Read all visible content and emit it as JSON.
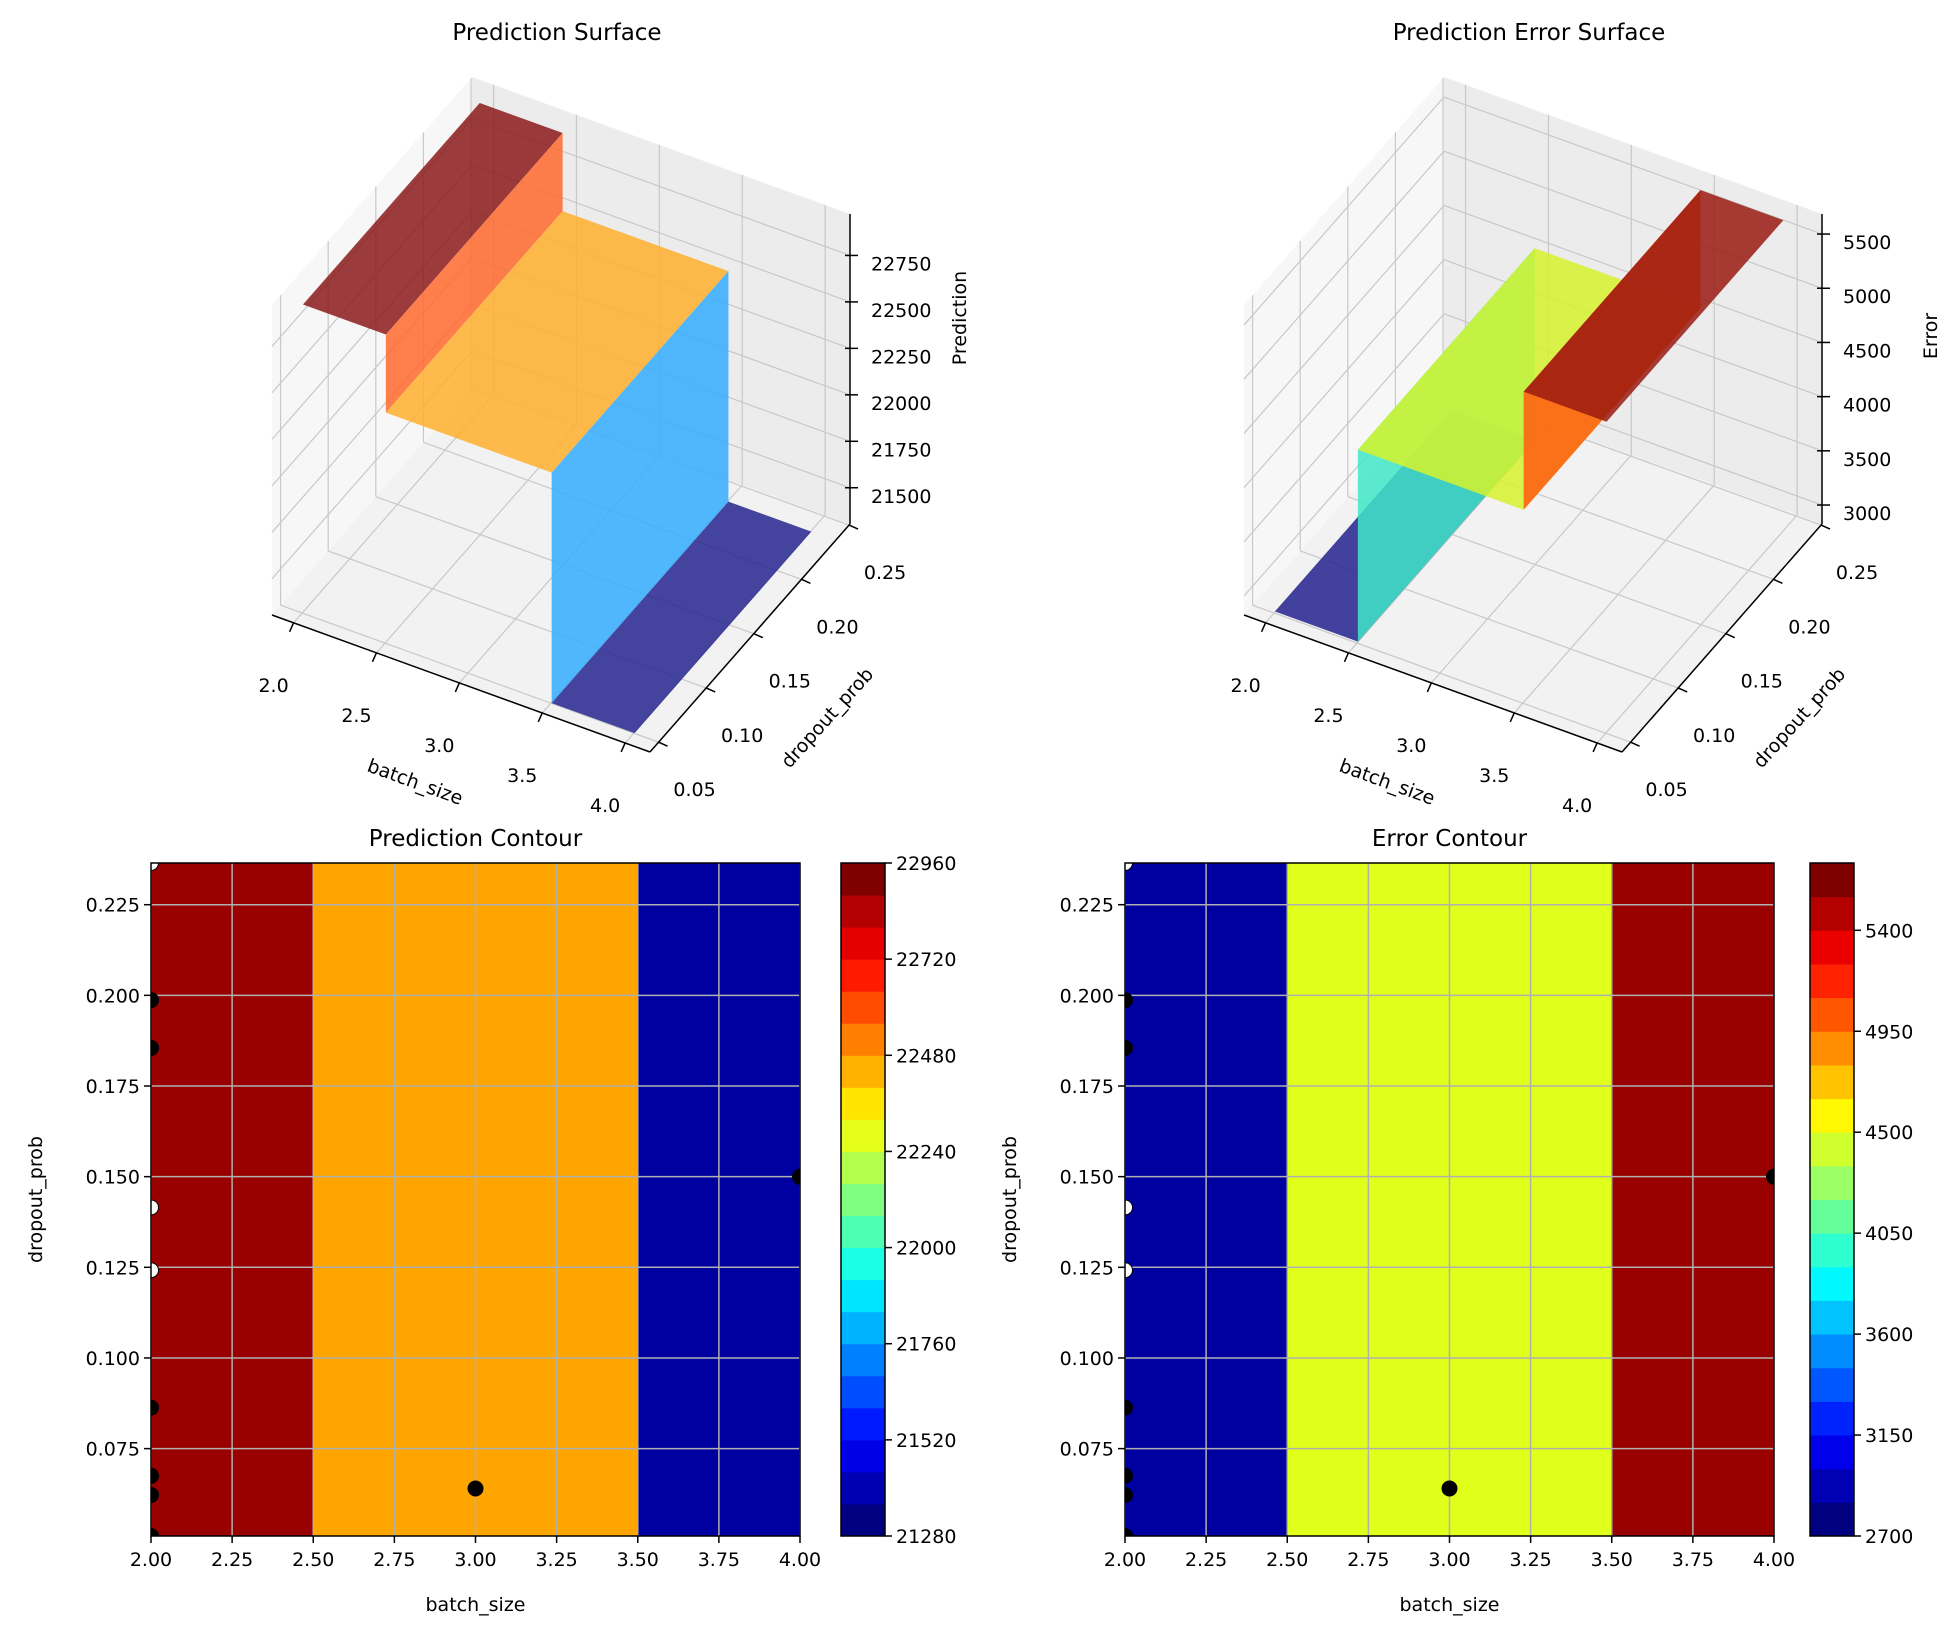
{
  "chart_data": [
    {
      "type": "surface",
      "title": "Prediction Surface",
      "xlabel": "batch_size",
      "ylabel": "dropout_prob",
      "zlabel": "Prediction",
      "xticks": [
        "2.0",
        "2.5",
        "3.0",
        "3.5",
        "4.0"
      ],
      "yticks": [
        "0.05",
        "0.10",
        "0.15",
        "0.20",
        "0.25"
      ],
      "zticks": [
        "21500",
        "21750",
        "22000",
        "22250",
        "22500",
        "22750"
      ],
      "zlim": [
        21305,
        22973
      ],
      "dropout_range": [
        0.0509,
        0.2365
      ],
      "colormap": "jet",
      "regions": [
        {
          "batch_size": [
            2.0,
            2.5
          ],
          "value": 22960,
          "color": "#8b1a1a"
        },
        {
          "batch_size": [
            2.5,
            3.5
          ],
          "value": 22540,
          "color": "#ffb02e"
        },
        {
          "batch_size": [
            3.5,
            4.0
          ],
          "value": 21300,
          "color": "#26268f"
        }
      ],
      "wall_colors": [
        "#ff6a2e",
        "#35adff"
      ]
    },
    {
      "type": "surface",
      "title": "Prediction Error Surface",
      "xlabel": "batch_size",
      "ylabel": "dropout_prob",
      "zlabel": "Error",
      "xticks": [
        "2.0",
        "2.5",
        "3.0",
        "3.5",
        "4.0"
      ],
      "yticks": [
        "0.05",
        "0.10",
        "0.15",
        "0.20",
        "0.25"
      ],
      "zticks": [
        "3000",
        "3500",
        "4000",
        "4500",
        "5000",
        "5500"
      ],
      "zlim": [
        2825,
        5685
      ],
      "dropout_range": [
        0.0509,
        0.2365
      ],
      "colormap": "jet",
      "regions": [
        {
          "batch_size": [
            2.0,
            2.5
          ],
          "value": 2830,
          "color": "#23238f"
        },
        {
          "batch_size": [
            2.5,
            3.5
          ],
          "value": 4600,
          "color": "#d6f22c"
        },
        {
          "batch_size": [
            3.5,
            4.0
          ],
          "value": 5690,
          "color": "#9a1a10"
        }
      ],
      "wall_colors": [
        "#40e6c8",
        "#ff5a10"
      ]
    },
    {
      "type": "contour",
      "title": "Prediction Contour",
      "xlabel": "batch_size",
      "ylabel": "dropout_prob",
      "xlim": [
        2.0,
        4.0
      ],
      "ylim": [
        0.0509,
        0.2365
      ],
      "grid": true,
      "xticks": [
        "2.00",
        "2.25",
        "2.50",
        "2.75",
        "3.00",
        "3.25",
        "3.50",
        "3.75",
        "4.00"
      ],
      "yticks": [
        "0.075",
        "0.100",
        "0.125",
        "0.150",
        "0.175",
        "0.200",
        "0.225"
      ],
      "regions": [
        {
          "batch_size": [
            2.0,
            2.5
          ],
          "value": 22960,
          "color": "#990000"
        },
        {
          "batch_size": [
            2.5,
            3.5
          ],
          "value": 22540,
          "color": "#ffa500"
        },
        {
          "batch_size": [
            3.5,
            4.0
          ],
          "value": 21300,
          "color": "#0000a0"
        }
      ],
      "colorbar": {
        "colormap": "jet",
        "min": 21280,
        "max": 22960,
        "level_step": 80,
        "ticks": [
          "21280",
          "21520",
          "21760",
          "22000",
          "22240",
          "22480",
          "22720",
          "22960"
        ]
      },
      "points": [
        {
          "batch_size": 2.0,
          "dropout_prob": 0.2365,
          "fill": "#ffffff"
        },
        {
          "batch_size": 2.0,
          "dropout_prob": 0.1987,
          "fill": "#000000"
        },
        {
          "batch_size": 2.0,
          "dropout_prob": 0.1855,
          "fill": "#000000"
        },
        {
          "batch_size": 2.0,
          "dropout_prob": 0.1415,
          "fill": "#ffffff"
        },
        {
          "batch_size": 2.0,
          "dropout_prob": 0.1242,
          "fill": "#ffffff"
        },
        {
          "batch_size": 2.0,
          "dropout_prob": 0.0863,
          "fill": "#000000"
        },
        {
          "batch_size": 2.0,
          "dropout_prob": 0.0675,
          "fill": "#000000"
        },
        {
          "batch_size": 2.0,
          "dropout_prob": 0.0622,
          "fill": "#000000"
        },
        {
          "batch_size": 2.0,
          "dropout_prob": 0.0509,
          "fill": "#000000"
        },
        {
          "batch_size": 3.0,
          "dropout_prob": 0.064,
          "fill": "#000000"
        },
        {
          "batch_size": 4.0,
          "dropout_prob": 0.15,
          "fill": "#000000"
        }
      ]
    },
    {
      "type": "contour",
      "title": "Error Contour",
      "xlabel": "batch_size",
      "ylabel": "dropout_prob",
      "xlim": [
        2.0,
        4.0
      ],
      "ylim": [
        0.0509,
        0.2365
      ],
      "grid": true,
      "xticks": [
        "2.00",
        "2.25",
        "2.50",
        "2.75",
        "3.00",
        "3.25",
        "3.50",
        "3.75",
        "4.00"
      ],
      "yticks": [
        "0.075",
        "0.100",
        "0.125",
        "0.150",
        "0.175",
        "0.200",
        "0.225"
      ],
      "regions": [
        {
          "batch_size": [
            2.0,
            2.5
          ],
          "value": 2830,
          "color": "#0000a0"
        },
        {
          "batch_size": [
            2.5,
            3.5
          ],
          "value": 4600,
          "color": "#e0ff1b"
        },
        {
          "batch_size": [
            3.5,
            4.0
          ],
          "value": 5690,
          "color": "#990000"
        }
      ],
      "colorbar": {
        "colormap": "jet",
        "min": 2700,
        "max": 5700,
        "level_step": 150,
        "ticks": [
          "2700",
          "3150",
          "3600",
          "4050",
          "4500",
          "4950",
          "5400"
        ]
      },
      "points": [
        {
          "batch_size": 2.0,
          "dropout_prob": 0.2365,
          "fill": "#ffffff"
        },
        {
          "batch_size": 2.0,
          "dropout_prob": 0.1987,
          "fill": "#000000"
        },
        {
          "batch_size": 2.0,
          "dropout_prob": 0.1855,
          "fill": "#000000"
        },
        {
          "batch_size": 2.0,
          "dropout_prob": 0.1415,
          "fill": "#ffffff"
        },
        {
          "batch_size": 2.0,
          "dropout_prob": 0.1242,
          "fill": "#ffffff"
        },
        {
          "batch_size": 2.0,
          "dropout_prob": 0.0863,
          "fill": "#000000"
        },
        {
          "batch_size": 2.0,
          "dropout_prob": 0.0675,
          "fill": "#000000"
        },
        {
          "batch_size": 2.0,
          "dropout_prob": 0.0622,
          "fill": "#000000"
        },
        {
          "batch_size": 2.0,
          "dropout_prob": 0.0509,
          "fill": "#000000"
        },
        {
          "batch_size": 3.0,
          "dropout_prob": 0.064,
          "fill": "#000000"
        },
        {
          "batch_size": 4.0,
          "dropout_prob": 0.15,
          "fill": "#000000"
        }
      ]
    }
  ]
}
